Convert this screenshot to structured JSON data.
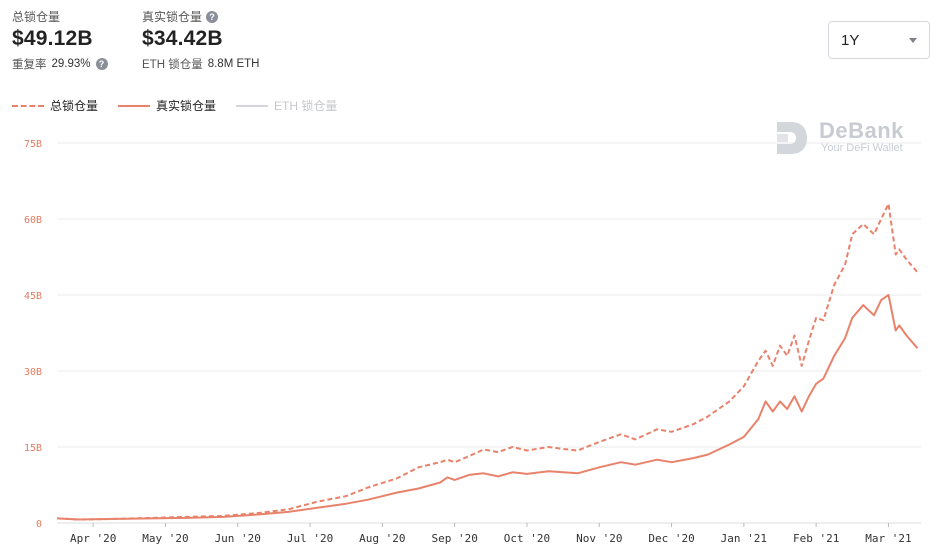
{
  "stats": {
    "total_label": "总锁仓量",
    "total_value": "$49.12B",
    "repeat_label": "重复率",
    "repeat_value": "29.93%",
    "real_label": "真实锁仓量",
    "real_value": "$34.42B",
    "eth_label": "ETH 锁仓量",
    "eth_value": "8.8M ETH"
  },
  "range_select": {
    "value": "1Y"
  },
  "legend": {
    "total": "总锁仓量",
    "real": "真实锁仓量",
    "eth": "ETH 锁仓量"
  },
  "watermark": {
    "name": "DeBank",
    "tagline": "Your DeFi Wallet"
  },
  "colors": {
    "accent": "#e8826a",
    "disabled": "#c6c8cc",
    "grid": "#ebebeb"
  },
  "chart_data": {
    "type": "line",
    "ylim": [
      0,
      75
    ],
    "yticks": [
      "0",
      "15B",
      "30B",
      "45B",
      "60B",
      "75B"
    ],
    "x_months": [
      "Apr '20",
      "May '20",
      "Jun '20",
      "Jul '20",
      "Aug '20",
      "Sep '20",
      "Oct '20",
      "Nov '20",
      "Dec '20",
      "Jan '21",
      "Feb '21",
      "Mar '21"
    ],
    "x_positions": [
      0.5,
      1.5,
      2.5,
      3.5,
      4.5,
      5.5,
      6.5,
      7.5,
      8.5,
      9.5,
      10.5,
      11.5
    ],
    "xlim": [
      0,
      11.95
    ],
    "series": [
      {
        "name": "总锁仓量",
        "style": "dashed",
        "x": [
          0,
          0.3,
          0.8,
          1.3,
          1.8,
          2.3,
          2.8,
          3.2,
          3.6,
          4.0,
          4.3,
          4.7,
          5.0,
          5.3,
          5.4,
          5.5,
          5.7,
          5.9,
          6.1,
          6.3,
          6.5,
          6.8,
          7.0,
          7.2,
          7.5,
          7.8,
          8.0,
          8.3,
          8.5,
          8.8,
          9.0,
          9.3,
          9.5,
          9.7,
          9.8,
          9.9,
          10.0,
          10.1,
          10.2,
          10.3,
          10.4,
          10.5,
          10.6,
          10.75,
          10.9,
          11.0,
          11.15,
          11.3,
          11.4,
          11.5,
          11.6,
          11.65,
          11.75,
          11.9
        ],
        "values": [
          0.9,
          0.7,
          0.8,
          1.0,
          1.2,
          1.4,
          2.0,
          2.7,
          4.2,
          5.3,
          7.0,
          8.8,
          11.0,
          12.0,
          12.5,
          12.0,
          13.2,
          14.5,
          14.0,
          15.0,
          14.3,
          15.0,
          14.6,
          14.3,
          16.0,
          17.5,
          16.5,
          18.5,
          18.0,
          19.5,
          21.0,
          24.0,
          27.0,
          32.0,
          34.0,
          31.0,
          35.0,
          33.0,
          37.0,
          31.0,
          36.0,
          40.5,
          40.0,
          47.0,
          51.0,
          57.0,
          59.0,
          57.0,
          60.0,
          63.0,
          53.0,
          54.0,
          52.0,
          49.5
        ]
      },
      {
        "name": "真实锁仓量",
        "style": "solid",
        "x": [
          0,
          0.3,
          0.8,
          1.3,
          1.8,
          2.3,
          2.8,
          3.2,
          3.6,
          4.0,
          4.3,
          4.7,
          5.0,
          5.3,
          5.4,
          5.5,
          5.7,
          5.9,
          6.1,
          6.3,
          6.5,
          6.8,
          7.0,
          7.2,
          7.5,
          7.8,
          8.0,
          8.3,
          8.5,
          8.8,
          9.0,
          9.3,
          9.5,
          9.7,
          9.8,
          9.9,
          10.0,
          10.1,
          10.2,
          10.3,
          10.4,
          10.5,
          10.6,
          10.75,
          10.9,
          11.0,
          11.15,
          11.3,
          11.4,
          11.5,
          11.6,
          11.65,
          11.75,
          11.9
        ],
        "values": [
          0.9,
          0.7,
          0.8,
          0.9,
          1.0,
          1.2,
          1.7,
          2.2,
          3.0,
          3.8,
          4.6,
          6.0,
          6.8,
          8.0,
          9.0,
          8.5,
          9.5,
          9.8,
          9.2,
          10.0,
          9.7,
          10.2,
          10.0,
          9.8,
          11.0,
          12.0,
          11.5,
          12.5,
          12.0,
          12.8,
          13.5,
          15.5,
          17.0,
          20.5,
          24.0,
          22.0,
          24.0,
          22.5,
          25.0,
          22.0,
          25.0,
          27.5,
          28.5,
          33.0,
          36.5,
          40.5,
          43.0,
          41.0,
          44.0,
          45.0,
          38.0,
          39.0,
          37.0,
          34.5
        ]
      },
      {
        "name": "ETH 锁仓量",
        "style": "hidden",
        "x": [],
        "values": []
      }
    ]
  }
}
